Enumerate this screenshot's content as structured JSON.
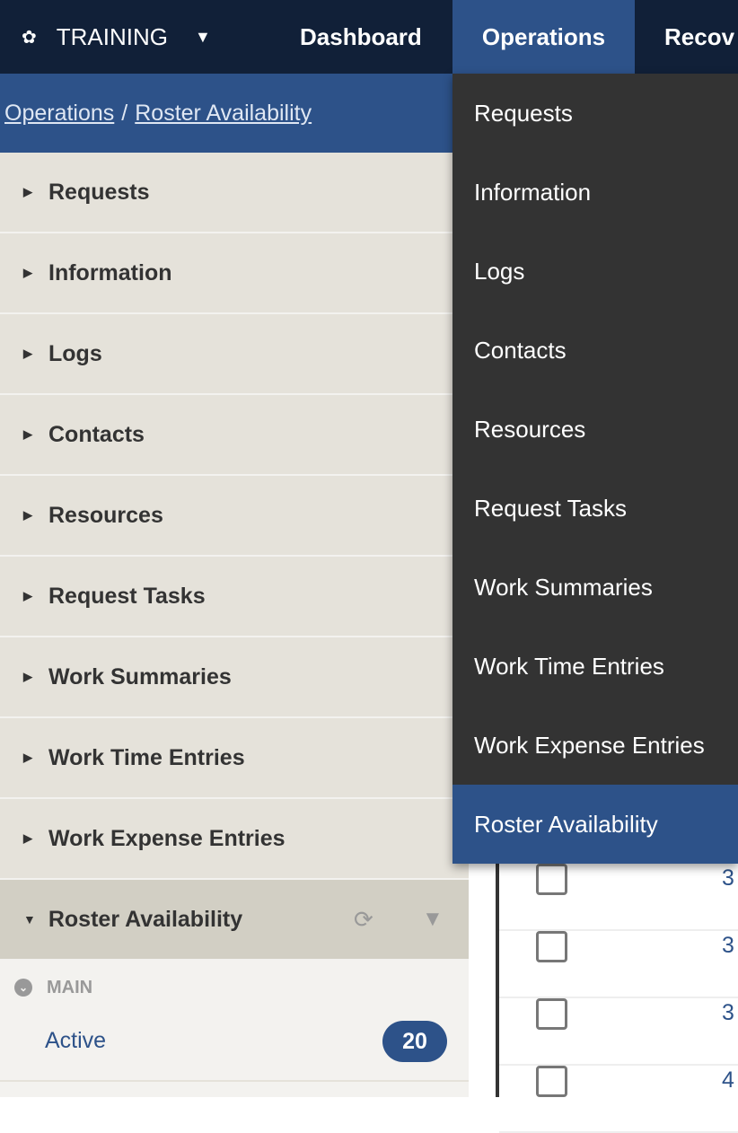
{
  "topbar": {
    "brand": "TRAINING",
    "nav": [
      "Dashboard",
      "Operations",
      "Recov"
    ]
  },
  "breadcrumb": {
    "parent": "Operations",
    "current": "Roster Availability"
  },
  "sidebar": {
    "items": [
      "Requests",
      "Information",
      "Logs",
      "Contacts",
      "Resources",
      "Request Tasks",
      "Work Summaries",
      "Work Time Entries",
      "Work Expense Entries"
    ],
    "open_item": "Roster Availability",
    "section": "MAIN",
    "active_label": "Active",
    "active_count": "20"
  },
  "dropdown": {
    "items": [
      "Requests",
      "Information",
      "Logs",
      "Contacts",
      "Resources",
      "Request Tasks",
      "Work Summaries",
      "Work Time Entries",
      "Work Expense Entries",
      "Roster Availability"
    ],
    "selected": "Roster Availability"
  },
  "table": {
    "rows": [
      "3",
      "3",
      "3",
      "4"
    ]
  },
  "colors": {
    "topbar": "#112038",
    "accent": "#2d5289",
    "dropdown": "#333333"
  }
}
